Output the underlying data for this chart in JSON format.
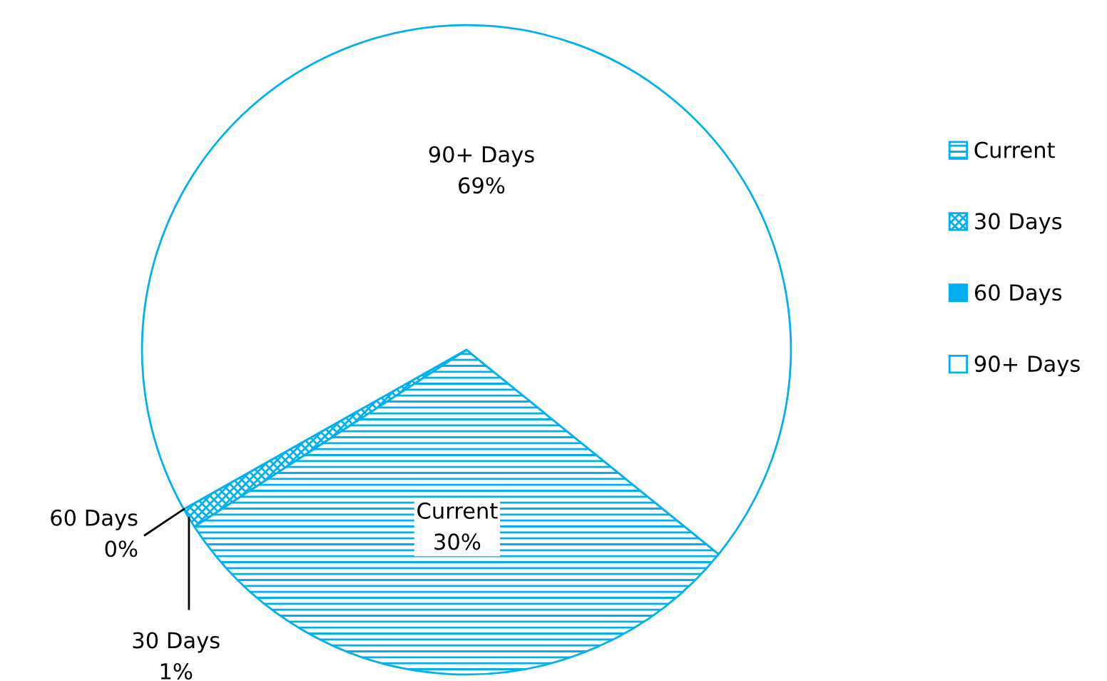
{
  "chart_data": {
    "type": "pie",
    "categories": [
      "Current",
      "30 Days",
      "60 Days",
      "90+ Days"
    ],
    "values": [
      30,
      1,
      0,
      69
    ],
    "value_labels": [
      "30%",
      "1%",
      "0%",
      "69%"
    ],
    "colors": [
      "#00b0f0",
      "#00b0f0",
      "#00b0f0",
      "#00b0f0"
    ],
    "legend": "right"
  }
}
